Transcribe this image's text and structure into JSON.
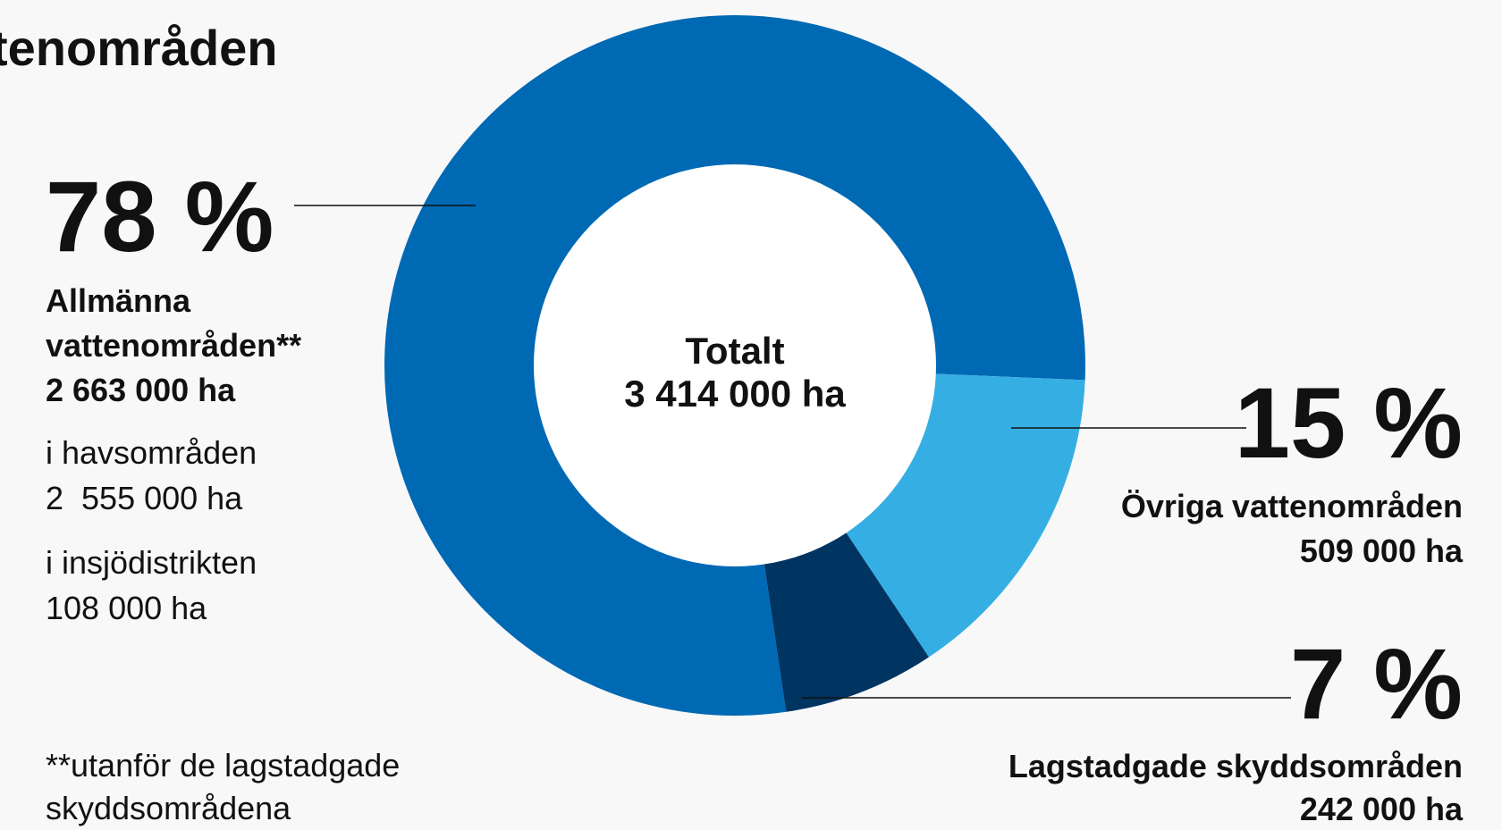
{
  "title": "tenområden",
  "chart_data": {
    "type": "donut",
    "categories": [
      "Allmänna vattenområden**",
      "Övriga vattenområden",
      "Lagstadgade skyddsområden"
    ],
    "values": [
      78,
      15,
      7
    ],
    "value_labels": [
      "78 %",
      "15 %",
      "7 %"
    ],
    "areas": [
      "2 663 000 ha",
      "509 000 ha",
      "242 000 ha"
    ],
    "colors": [
      "#0069b4",
      "#35aee3",
      "#003461"
    ],
    "center_label": "Totalt",
    "total_label": "3 414 000 ha"
  },
  "details": [
    {
      "label": "i havsområden",
      "area": "2  555 000 ha"
    },
    {
      "label": "i insjödistrikten",
      "area": "108 000 ha"
    }
  ],
  "footnote": "**utanför de lagstadgade skyddsområdena"
}
